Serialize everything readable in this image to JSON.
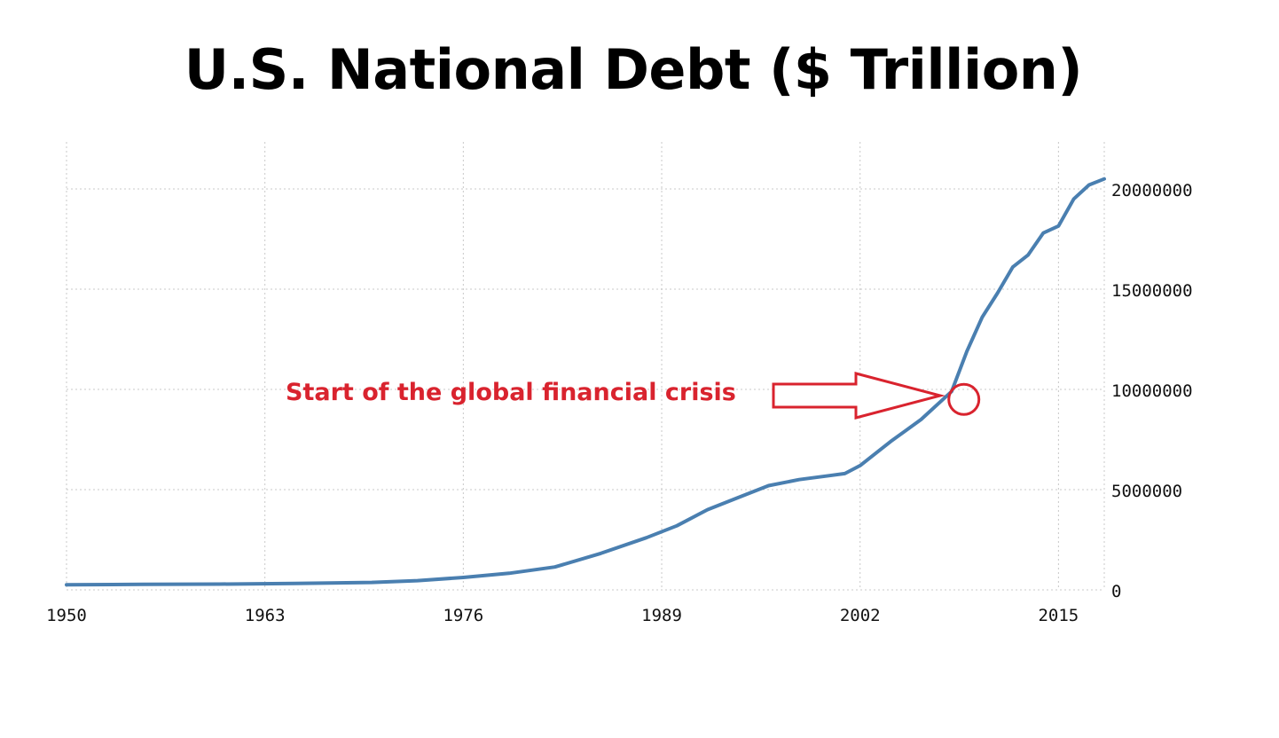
{
  "chart_data": {
    "type": "line",
    "title": "U.S. National Debt ($ Trillion)",
    "xlabel": "",
    "ylabel": "",
    "xlim": [
      1950,
      2018
    ],
    "ylim": [
      0,
      20000000
    ],
    "x_ticks": [
      1950,
      1963,
      1976,
      1989,
      2002,
      2015
    ],
    "y_ticks": [
      0,
      5000000,
      10000000,
      15000000,
      20000000
    ],
    "y_axis_side": "right",
    "grid": true,
    "line_color": "#4a7fb0",
    "series": [
      {
        "name": "",
        "x": [
          1950,
          1955,
          1960,
          1965,
          1970,
          1973,
          1976,
          1979,
          1982,
          1985,
          1988,
          1990,
          1992,
          1994,
          1996,
          1998,
          2000,
          2001,
          2002,
          2004,
          2006,
          2008,
          2009,
          2010,
          2011,
          2012,
          2013,
          2014,
          2015,
          2016,
          2017,
          2018
        ],
        "y": [
          257000,
          274000,
          286000,
          317000,
          371000,
          458000,
          620000,
          827000,
          1140000,
          1820000,
          2600000,
          3200000,
          4000000,
          4600000,
          5200000,
          5500000,
          5700000,
          5800000,
          6200000,
          7400000,
          8500000,
          9900000,
          11900000,
          13600000,
          14800000,
          16100000,
          16700000,
          17800000,
          18150000,
          19500000,
          20200000,
          20500000
        ]
      }
    ],
    "annotations": [
      {
        "text": "Start of the global financial crisis",
        "x": 2008.8,
        "y": 9500000,
        "color": "#d9232e"
      }
    ]
  }
}
